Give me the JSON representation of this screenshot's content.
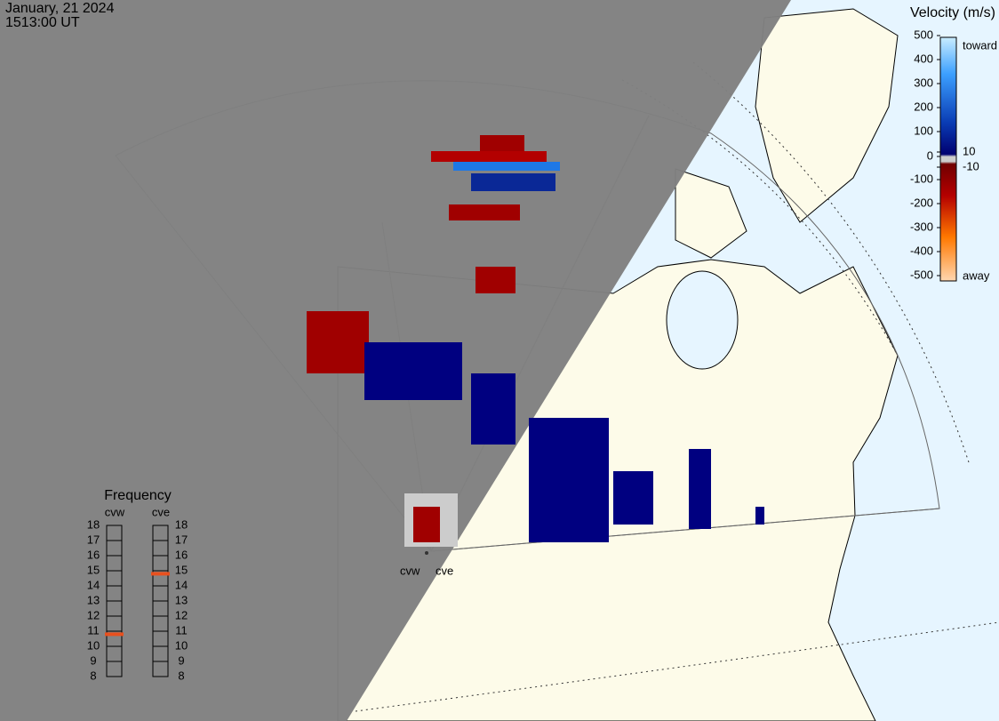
{
  "header": {
    "date": "January, 21 2024",
    "time": "1513:00 UT"
  },
  "velocity_scale": {
    "title": "Velocity (m/s)",
    "ticks": [
      500,
      400,
      300,
      200,
      100,
      10,
      0,
      -10,
      -100,
      -200,
      -300,
      -400,
      -500
    ],
    "toward": "toward",
    "away": "away"
  },
  "frequency": {
    "title": "Frequency",
    "ticks": [
      8,
      9,
      10,
      11,
      12,
      13,
      14,
      15,
      16,
      17,
      18
    ],
    "radars": [
      {
        "name": "cvw",
        "value": 10.8
      },
      {
        "name": "cve",
        "value": 14.8
      }
    ]
  },
  "map_labels": [
    "cvw",
    "cve"
  ]
}
